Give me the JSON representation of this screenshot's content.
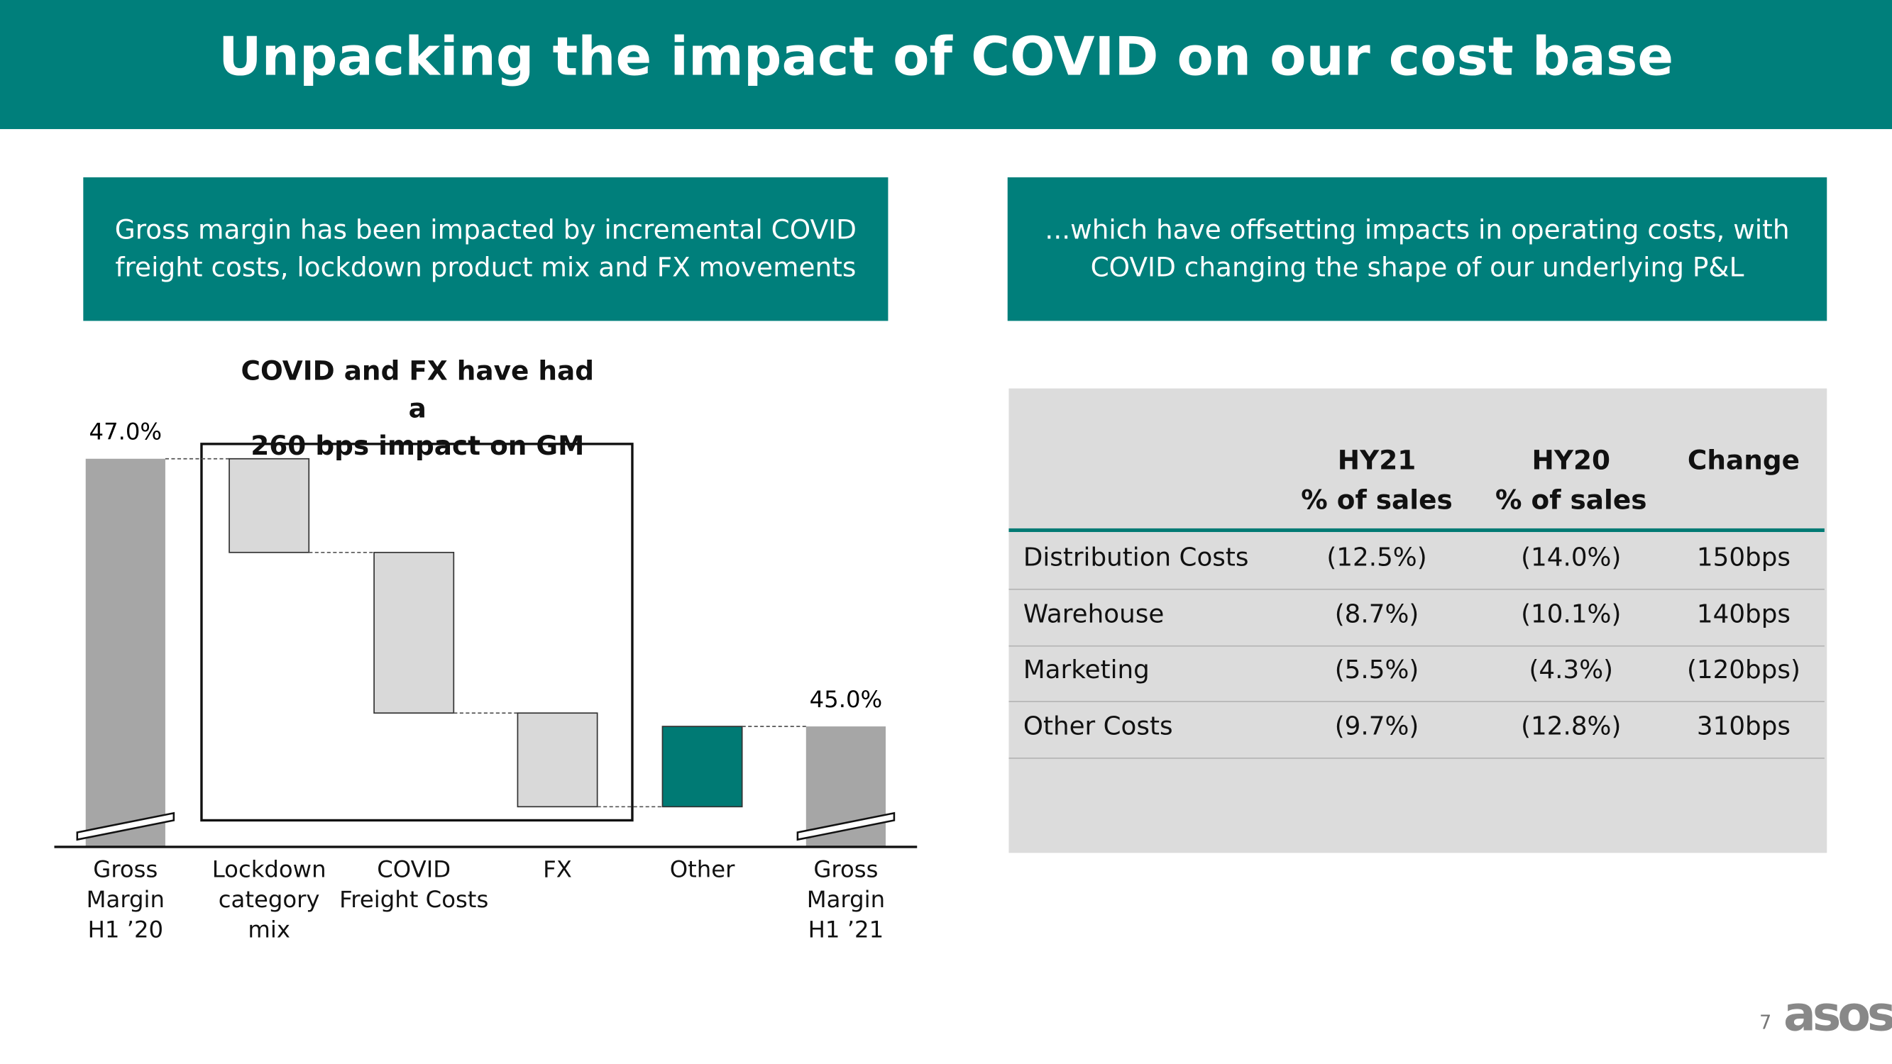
{
  "header": {
    "title": "Unpacking the impact of COVID on our cost base"
  },
  "left_panel": {
    "heading": "Gross margin has been impacted by incremental COVID freight costs, lockdown product mix and FX movements"
  },
  "right_panel": {
    "heading": "...which have offsetting impacts in operating costs, with COVID changing the shape of our underlying P&L"
  },
  "chart_data": {
    "type": "waterfall",
    "annotation": "COVID and FX have had a\n260 bps impact on GM",
    "categories": [
      "Gross\nMargin\nH1 ’20",
      "Lockdown\ncategory\nmix",
      "COVID\nFreight Costs",
      "FX",
      "Other",
      "Gross\nMargin\nH1 ’21"
    ],
    "values": [
      47.0,
      -0.7,
      -1.2,
      -0.7,
      0.6,
      45.0
    ],
    "value_labels": [
      "47.0%",
      null,
      null,
      null,
      null,
      "45.0%"
    ],
    "measure": [
      "absolute",
      "relative",
      "relative",
      "relative",
      "relative",
      "absolute"
    ],
    "colors": {
      "total": "#a6a6a6",
      "decrease": "#d9d9d9",
      "increase": "#007a74"
    },
    "ylim": [
      44.1,
      47.3
    ],
    "axis_break": true
  },
  "table": {
    "columns": [
      "",
      "HY21\n% of sales",
      "HY20\n% of sales",
      "Change"
    ],
    "rows": [
      [
        "Distribution Costs",
        "(12.5%)",
        "(14.0%)",
        "150bps"
      ],
      [
        "Warehouse",
        "(8.7%)",
        "(10.1%)",
        "140bps"
      ],
      [
        "Marketing",
        "(5.5%)",
        "(4.3%)",
        "(120bps)"
      ],
      [
        "Other Costs",
        "(9.7%)",
        "(12.8%)",
        "310bps"
      ]
    ]
  },
  "footer": {
    "page": "7",
    "logo": "asos"
  }
}
